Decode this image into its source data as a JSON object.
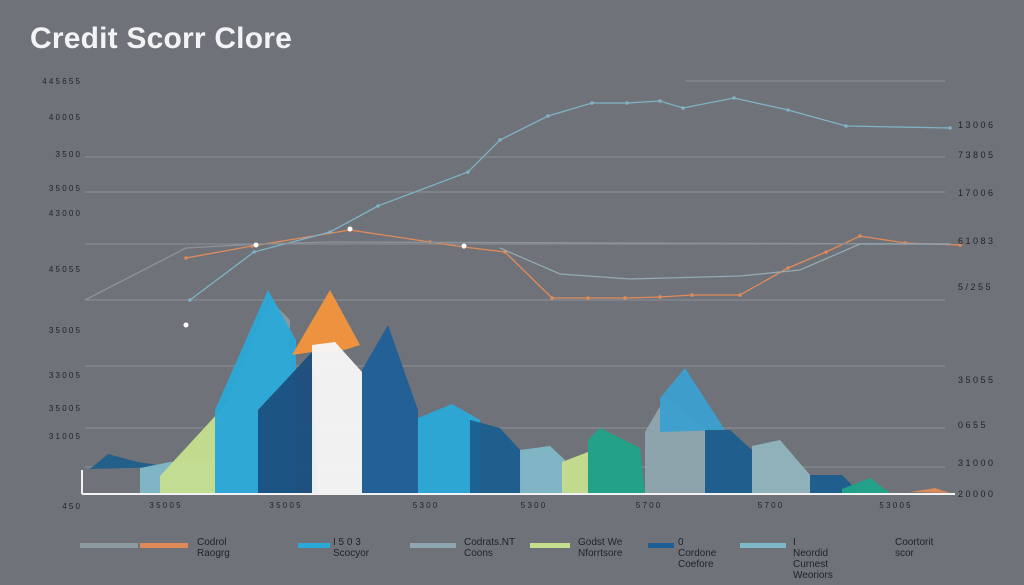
{
  "title": "Credit  Scorr Clore",
  "chart_data": {
    "type": "area",
    "title": "Credit  Scorr Clore",
    "y_left_ticks": [
      "4 4 5 6 5 5",
      "4 0 0 0 5",
      "3 5 0 0",
      "3 5 0 0 5",
      "4 3 0 0 0",
      "4 5 0 5 5",
      "3 5 0 0 5",
      "3 3 0 0 5",
      "3 5 0 0 5",
      "3 1 0 0 5",
      "4 5 0"
    ],
    "y_right_ticks": [
      "1 3 0 0 6",
      "7 3 8 0 5",
      "1 7 0 0 6",
      "6 1 0 8 3",
      "5 / 2 5 5",
      "3 5 0 5 5",
      "0 6 5 5",
      "3 1 0 0 0",
      "2 0 0 0 0"
    ],
    "x_ticks": [
      "3 5 0 0 5",
      "3 5 0 0 5",
      "5 3 0 0",
      "5 3 0 0",
      "5 7 0 0",
      "5 7 0 0",
      "5 3 0 0 5"
    ],
    "grid": true,
    "legend_position": "bottom",
    "series": [
      {
        "kind": "line",
        "color": "#e08a5a",
        "values": [
          [
            186,
            258
          ],
          [
            252,
            246
          ],
          [
            350,
            230
          ],
          [
            430,
            242
          ],
          [
            464,
            247
          ],
          [
            505,
            252
          ],
          [
            552,
            298
          ],
          [
            588,
            298
          ],
          [
            625,
            298
          ],
          [
            660,
            297
          ],
          [
            692,
            295
          ],
          [
            740,
            295
          ],
          [
            788,
            268
          ],
          [
            826,
            252
          ],
          [
            860,
            236
          ],
          [
            905,
            243
          ],
          [
            960,
            245
          ]
        ]
      },
      {
        "kind": "line",
        "color": "#7fb2c4",
        "values": [
          [
            190,
            300
          ],
          [
            254,
            252
          ],
          [
            330,
            232
          ],
          [
            378,
            206
          ],
          [
            468,
            172
          ],
          [
            500,
            140
          ],
          [
            548,
            116
          ],
          [
            592,
            103
          ],
          [
            627,
            103
          ],
          [
            660,
            101
          ],
          [
            683,
            108
          ],
          [
            734,
            98
          ],
          [
            788,
            110
          ],
          [
            846,
            126
          ],
          [
            950,
            128
          ]
        ]
      },
      {
        "kind": "line",
        "color": "#8c9298",
        "values": [
          [
            85,
            300
          ],
          [
            186,
            248
          ],
          [
            258,
            244
          ],
          [
            330,
            242
          ],
          [
            950,
            244
          ]
        ]
      },
      {
        "kind": "line",
        "color": "#94a9b2",
        "values": [
          [
            500,
            248
          ],
          [
            560,
            274
          ],
          [
            630,
            279
          ],
          [
            740,
            276
          ],
          [
            800,
            270
          ],
          [
            860,
            244
          ],
          [
            950,
            244
          ]
        ]
      }
    ],
    "areas": [
      {
        "color": "#1f5e8a",
        "values": [
          [
            90,
            469
          ],
          [
            108,
            454
          ],
          [
            138,
            462
          ],
          [
            170,
            467
          ]
        ]
      },
      {
        "color": "#7fb8c8",
        "values": [
          [
            140,
            468
          ],
          [
            170,
            462
          ],
          [
            215,
            458
          ],
          [
            215,
            493
          ],
          [
            140,
            493
          ]
        ]
      },
      {
        "color": "#c6df8e",
        "values": [
          [
            160,
            476
          ],
          [
            230,
            400
          ],
          [
            262,
            418
          ],
          [
            262,
            493
          ],
          [
            160,
            493
          ]
        ]
      },
      {
        "color": "#8d9aa0",
        "values": [
          [
            215,
            430
          ],
          [
            270,
            300
          ],
          [
            290,
            320
          ],
          [
            290,
            493
          ],
          [
            215,
            493
          ]
        ]
      },
      {
        "color": "#2aa9d8",
        "values": [
          [
            215,
            410
          ],
          [
            268,
            290
          ],
          [
            296,
            340
          ],
          [
            296,
            493
          ],
          [
            215,
            493
          ]
        ]
      },
      {
        "color": "#1b4f7e",
        "values": [
          [
            258,
            410
          ],
          [
            312,
            352
          ],
          [
            318,
            493
          ],
          [
            258,
            493
          ]
        ]
      },
      {
        "color": "#f3943b",
        "values": [
          [
            292,
            355
          ],
          [
            330,
            290
          ],
          [
            360,
            345
          ],
          [
            338,
            352
          ],
          [
            312,
            352
          ]
        ]
      },
      {
        "color": "#f8f8f8",
        "values": [
          [
            312,
            345
          ],
          [
            335,
            342
          ],
          [
            362,
            372
          ],
          [
            362,
            493
          ],
          [
            312,
            493
          ]
        ]
      },
      {
        "color": "#1f5f97",
        "values": [
          [
            362,
            370
          ],
          [
            388,
            325
          ],
          [
            418,
            410
          ],
          [
            418,
            493
          ],
          [
            362,
            493
          ]
        ]
      },
      {
        "color": "#2aa9d8",
        "values": [
          [
            418,
            418
          ],
          [
            452,
            404
          ],
          [
            480,
            420
          ],
          [
            480,
            493
          ],
          [
            418,
            493
          ]
        ]
      },
      {
        "color": "#1b5e8e",
        "values": [
          [
            470,
            420
          ],
          [
            500,
            428
          ],
          [
            522,
            452
          ],
          [
            522,
            493
          ],
          [
            470,
            493
          ]
        ]
      },
      {
        "color": "#7fb8c8",
        "values": [
          [
            520,
            450
          ],
          [
            550,
            446
          ],
          [
            565,
            460
          ],
          [
            565,
            493
          ],
          [
            520,
            493
          ]
        ]
      },
      {
        "color": "#c6df8e",
        "values": [
          [
            562,
            462
          ],
          [
            588,
            452
          ],
          [
            588,
            493
          ],
          [
            562,
            493
          ]
        ]
      },
      {
        "color": "#1fa38a",
        "values": [
          [
            588,
            440
          ],
          [
            600,
            428
          ],
          [
            640,
            448
          ],
          [
            645,
            493
          ],
          [
            588,
            493
          ]
        ]
      },
      {
        "color": "#8fa6b0",
        "values": [
          [
            645,
            432
          ],
          [
            665,
            398
          ],
          [
            705,
            428
          ],
          [
            705,
            493
          ],
          [
            645,
            493
          ]
        ]
      },
      {
        "color": "#3b9fcf",
        "values": [
          [
            660,
            398
          ],
          [
            685,
            368
          ],
          [
            725,
            430
          ],
          [
            660,
            432
          ]
        ]
      },
      {
        "color": "#1b5e8e",
        "values": [
          [
            705,
            430
          ],
          [
            730,
            430
          ],
          [
            752,
            450
          ],
          [
            752,
            493
          ],
          [
            705,
            493
          ]
        ]
      },
      {
        "color": "#8fb4be",
        "values": [
          [
            752,
            446
          ],
          [
            780,
            440
          ],
          [
            810,
            475
          ],
          [
            810,
            493
          ],
          [
            752,
            493
          ]
        ]
      },
      {
        "color": "#1b5e8e",
        "values": [
          [
            810,
            475
          ],
          [
            842,
            475
          ],
          [
            860,
            493
          ],
          [
            810,
            493
          ]
        ]
      },
      {
        "color": "#1fa38a",
        "values": [
          [
            842,
            489
          ],
          [
            870,
            478
          ],
          [
            890,
            493
          ],
          [
            842,
            493
          ]
        ]
      },
      {
        "color": "#e08a5a",
        "values": [
          [
            910,
            492
          ],
          [
            935,
            488
          ],
          [
            950,
            493
          ]
        ]
      }
    ]
  },
  "legend": [
    {
      "label": "Codrol Raogrg",
      "color": "#e08a5a"
    },
    {
      "label": "I 5 0 3 Scocyor",
      "color": "#2aa9d8"
    },
    {
      "label": "Codrats.NT\nCoons",
      "color": "#8fa6b0"
    },
    {
      "label": "Godst We\nNforrtsore",
      "color": "#c6df8e"
    },
    {
      "label": "0 Cordone\nCoefore",
      "color": "#1f5f97"
    },
    {
      "label": "I Neordid Curnest\nWeoriors",
      "color": "#7fb8c8"
    },
    {
      "label": "Coortorit\nscor",
      "color": "#8d9aa0"
    }
  ]
}
